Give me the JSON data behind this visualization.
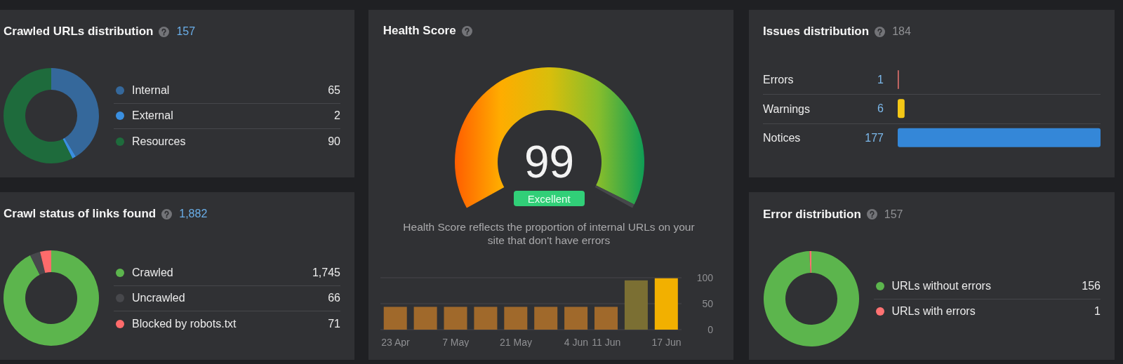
{
  "chart_data": [
    {
      "type": "donut",
      "title": "Crawled URLs distribution",
      "subtitle": "157",
      "categories": [
        "Internal",
        "External",
        "Resources"
      ],
      "values": [
        65,
        2,
        90
      ],
      "colors": [
        "#35689b",
        "#3a8fe0",
        "#1e6b3c"
      ],
      "data_labels": true,
      "legend": "right"
    },
    {
      "type": "donut",
      "title": "Health Score",
      "categories": [
        null,
        null
      ],
      "values": [
        99,
        1
      ],
      "colors": [
        "#d9be0b",
        "#46474b"
      ],
      "annotations": [
        "99",
        "Excellent",
        "Health Score reflects the proportion of internal URLs on your site that don't have errors"
      ]
    },
    {
      "type": "bar",
      "orientation": "horizontal",
      "title": "Issues distribution",
      "subtitle": "184",
      "categories": [
        "Errors",
        "Warnings",
        "Notices"
      ],
      "values": [
        1,
        6,
        177
      ],
      "colors": [
        "#e0706c",
        "#f5c816",
        "#3487d8"
      ],
      "data_labels": true
    },
    {
      "type": "donut",
      "title": "Crawl status of links found",
      "subtitle": "1,882",
      "categories": [
        "Crawled",
        "Uncrawled",
        "Blocked by robots.txt"
      ],
      "values": [
        1745,
        66,
        71
      ],
      "colors": [
        "#5cb54d",
        "#47484c",
        "#ff6b6b"
      ],
      "value_labels": [
        "1,745",
        "66",
        "71"
      ],
      "legend": "right"
    },
    {
      "type": "bar",
      "categories": [
        "23 Apr",
        null,
        "7 May",
        null,
        "21 May",
        null,
        "4 Jun",
        "11 Jun",
        null,
        "17 Jun"
      ],
      "values": [
        44,
        44,
        44,
        44,
        44,
        44,
        44,
        44,
        95,
        99
      ],
      "colors": [
        "#a0692b",
        "#a0692b",
        "#a0692b",
        "#a0692b",
        "#a0692b",
        "#a0692b",
        "#a0692b",
        "#a0692b",
        "#7b6f33",
        "#f2b000"
      ],
      "ylim": [
        0,
        100
      ],
      "yticks": [
        0,
        50,
        100
      ],
      "grid": "y"
    },
    {
      "type": "donut",
      "title": "Error distribution",
      "subtitle": "157",
      "categories": [
        "URLs without errors",
        "URLs with errors"
      ],
      "values": [
        156,
        1
      ],
      "colors": [
        "#5cb54d",
        "#ff7272"
      ],
      "data_labels": true,
      "legend": "right"
    }
  ]
}
